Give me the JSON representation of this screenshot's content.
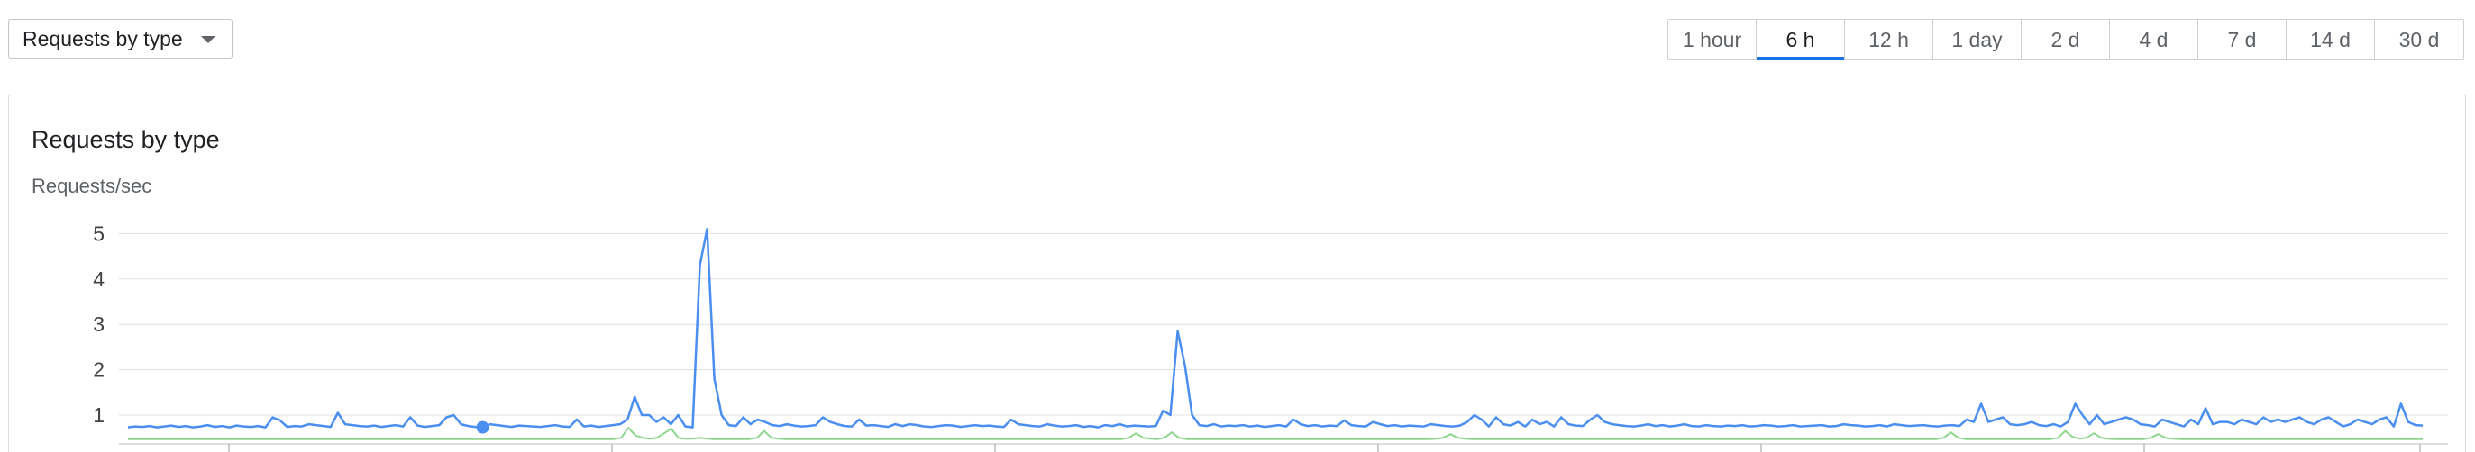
{
  "controls": {
    "type_dropdown_label": "Requests by type",
    "time_ranges": [
      "1 hour",
      "6 h",
      "12 h",
      "1 day",
      "2 d",
      "4 d",
      "7 d",
      "14 d",
      "30 d"
    ],
    "active_range": "6 h"
  },
  "card": {
    "title": "Requests by type",
    "y_axis_label": "Requests/sec"
  },
  "colors": {
    "series_blue": "#4a8ef0",
    "series_green": "#8fd68f",
    "active_tab": "#1a73e8"
  },
  "chart_data": {
    "type": "line",
    "title": "Requests by type",
    "ylabel": "Requests/sec",
    "y_ticks": [
      1,
      2,
      3,
      4,
      5
    ],
    "ylim": [
      0.45,
      5.5
    ],
    "grid": true,
    "series": [
      {
        "color": "#4a8ef0",
        "values": [
          0.73,
          0.75,
          0.74,
          0.76,
          0.73,
          0.75,
          0.77,
          0.74,
          0.76,
          0.73,
          0.75,
          0.78,
          0.74,
          0.76,
          0.73,
          0.77,
          0.75,
          0.74,
          0.76,
          0.73,
          0.95,
          0.88,
          0.74,
          0.76,
          0.75,
          0.8,
          0.78,
          0.76,
          0.74,
          1.05,
          0.8,
          0.78,
          0.76,
          0.75,
          0.77,
          0.74,
          0.76,
          0.78,
          0.75,
          0.95,
          0.77,
          0.74,
          0.76,
          0.78,
          0.95,
          1.0,
          0.8,
          0.76,
          0.74,
          0.73,
          0.8,
          0.78,
          0.76,
          0.74,
          0.77,
          0.76,
          0.75,
          0.74,
          0.76,
          0.78,
          0.75,
          0.74,
          0.9,
          0.75,
          0.77,
          0.74,
          0.76,
          0.78,
          0.8,
          0.9,
          1.4,
          1.0,
          1.0,
          0.85,
          0.95,
          0.8,
          1.0,
          0.75,
          0.73,
          4.3,
          5.1,
          1.8,
          1.0,
          0.78,
          0.76,
          0.95,
          0.8,
          0.9,
          0.85,
          0.78,
          0.76,
          0.8,
          0.77,
          0.75,
          0.76,
          0.78,
          0.95,
          0.85,
          0.8,
          0.76,
          0.75,
          0.9,
          0.77,
          0.78,
          0.76,
          0.74,
          0.8,
          0.76,
          0.8,
          0.78,
          0.75,
          0.74,
          0.76,
          0.78,
          0.77,
          0.74,
          0.76,
          0.78,
          0.76,
          0.77,
          0.75,
          0.74,
          0.9,
          0.8,
          0.78,
          0.76,
          0.75,
          0.8,
          0.77,
          0.75,
          0.76,
          0.78,
          0.74,
          0.76,
          0.73,
          0.78,
          0.76,
          0.8,
          0.75,
          0.77,
          0.76,
          0.75,
          0.76,
          1.1,
          1.0,
          2.85,
          2.1,
          1.0,
          0.78,
          0.76,
          0.8,
          0.75,
          0.77,
          0.76,
          0.78,
          0.75,
          0.77,
          0.74,
          0.76,
          0.78,
          0.75,
          0.9,
          0.8,
          0.76,
          0.78,
          0.75,
          0.77,
          0.76,
          0.88,
          0.78,
          0.76,
          0.75,
          0.85,
          0.8,
          0.76,
          0.78,
          0.75,
          0.77,
          0.76,
          0.75,
          0.8,
          0.78,
          0.76,
          0.75,
          0.77,
          0.85,
          1.0,
          0.9,
          0.75,
          0.95,
          0.8,
          0.77,
          0.85,
          0.75,
          0.9,
          0.8,
          0.85,
          0.75,
          0.95,
          0.8,
          0.77,
          0.76,
          0.9,
          1.0,
          0.85,
          0.8,
          0.78,
          0.76,
          0.75,
          0.77,
          0.8,
          0.76,
          0.78,
          0.75,
          0.77,
          0.8,
          0.76,
          0.75,
          0.78,
          0.76,
          0.75,
          0.77,
          0.76,
          0.78,
          0.75,
          0.76,
          0.78,
          0.77,
          0.75,
          0.76,
          0.78,
          0.75,
          0.76,
          0.77,
          0.78,
          0.75,
          0.76,
          0.8,
          0.78,
          0.77,
          0.75,
          0.76,
          0.78,
          0.75,
          0.8,
          0.78,
          0.76,
          0.77,
          0.78,
          0.76,
          0.75,
          0.77,
          0.78,
          0.76,
          0.9,
          0.85,
          1.25,
          0.85,
          0.9,
          0.95,
          0.8,
          0.78,
          0.8,
          0.85,
          0.78,
          0.76,
          0.8,
          0.75,
          0.85,
          1.25,
          1.0,
          0.8,
          1.0,
          0.8,
          0.85,
          0.9,
          0.95,
          0.9,
          0.8,
          0.78,
          0.75,
          0.9,
          0.85,
          0.8,
          0.75,
          0.9,
          0.8,
          1.15,
          0.8,
          0.85,
          0.85,
          0.8,
          0.9,
          0.85,
          0.8,
          0.95,
          0.85,
          0.9,
          0.85,
          0.9,
          0.95,
          0.85,
          0.8,
          0.9,
          0.95,
          0.85,
          0.75,
          0.8,
          0.9,
          0.85,
          0.8,
          0.9,
          0.95,
          0.75,
          1.25,
          0.85,
          0.78,
          0.77
        ]
      },
      {
        "color": "#8fd68f",
        "values": [
          0.47,
          0.47,
          0.47,
          0.47,
          0.47,
          0.47,
          0.47,
          0.47,
          0.47,
          0.47,
          0.47,
          0.47,
          0.47,
          0.47,
          0.47,
          0.47,
          0.47,
          0.47,
          0.47,
          0.47,
          0.47,
          0.47,
          0.47,
          0.47,
          0.47,
          0.47,
          0.47,
          0.47,
          0.47,
          0.47,
          0.47,
          0.47,
          0.47,
          0.47,
          0.47,
          0.47,
          0.47,
          0.47,
          0.47,
          0.47,
          0.47,
          0.47,
          0.47,
          0.47,
          0.47,
          0.47,
          0.47,
          0.47,
          0.47,
          0.47,
          0.47,
          0.47,
          0.47,
          0.47,
          0.47,
          0.47,
          0.47,
          0.47,
          0.47,
          0.47,
          0.47,
          0.47,
          0.47,
          0.47,
          0.47,
          0.47,
          0.47,
          0.47,
          0.47,
          0.5,
          0.72,
          0.55,
          0.5,
          0.48,
          0.5,
          0.6,
          0.7,
          0.5,
          0.48,
          0.48,
          0.5,
          0.48,
          0.47,
          0.47,
          0.47,
          0.47,
          0.47,
          0.47,
          0.5,
          0.65,
          0.5,
          0.48,
          0.47,
          0.47,
          0.47,
          0.47,
          0.47,
          0.47,
          0.47,
          0.47,
          0.47,
          0.47,
          0.47,
          0.47,
          0.47,
          0.47,
          0.47,
          0.47,
          0.47,
          0.47,
          0.47,
          0.47,
          0.47,
          0.47,
          0.47,
          0.47,
          0.47,
          0.47,
          0.47,
          0.47,
          0.47,
          0.47,
          0.47,
          0.47,
          0.47,
          0.47,
          0.47,
          0.47,
          0.47,
          0.47,
          0.47,
          0.47,
          0.47,
          0.47,
          0.47,
          0.47,
          0.47,
          0.47,
          0.47,
          0.47,
          0.5,
          0.6,
          0.5,
          0.48,
          0.47,
          0.5,
          0.62,
          0.5,
          0.47,
          0.47,
          0.47,
          0.47,
          0.47,
          0.47,
          0.47,
          0.47,
          0.47,
          0.47,
          0.47,
          0.47,
          0.47,
          0.47,
          0.47,
          0.47,
          0.47,
          0.47,
          0.47,
          0.47,
          0.47,
          0.47,
          0.47,
          0.47,
          0.47,
          0.47,
          0.47,
          0.47,
          0.47,
          0.47,
          0.47,
          0.47,
          0.47,
          0.47,
          0.47,
          0.48,
          0.5,
          0.58,
          0.5,
          0.48,
          0.47,
          0.47,
          0.47,
          0.47,
          0.47,
          0.47,
          0.47,
          0.47,
          0.47,
          0.47,
          0.47,
          0.47,
          0.47,
          0.47,
          0.47,
          0.47,
          0.47,
          0.47,
          0.47,
          0.47,
          0.47,
          0.47,
          0.47,
          0.47,
          0.47,
          0.47,
          0.47,
          0.47,
          0.47,
          0.47,
          0.47,
          0.47,
          0.47,
          0.47,
          0.47,
          0.47,
          0.47,
          0.47,
          0.47,
          0.47,
          0.47,
          0.47,
          0.47,
          0.47,
          0.47,
          0.47,
          0.47,
          0.47,
          0.47,
          0.47,
          0.47,
          0.47,
          0.47,
          0.47,
          0.47,
          0.47,
          0.47,
          0.47,
          0.47,
          0.47,
          0.47,
          0.47,
          0.47,
          0.47,
          0.47,
          0.47,
          0.5,
          0.62,
          0.5,
          0.47,
          0.47,
          0.47,
          0.47,
          0.47,
          0.47,
          0.47,
          0.47,
          0.47,
          0.47,
          0.47,
          0.47,
          0.47,
          0.5,
          0.65,
          0.52,
          0.48,
          0.5,
          0.6,
          0.5,
          0.48,
          0.47,
          0.47,
          0.47,
          0.47,
          0.47,
          0.5,
          0.58,
          0.5,
          0.48,
          0.47,
          0.47,
          0.47,
          0.47,
          0.47,
          0.47,
          0.47,
          0.47,
          0.47,
          0.47,
          0.47,
          0.47,
          0.47,
          0.47,
          0.47,
          0.47,
          0.47,
          0.47,
          0.47,
          0.47,
          0.47,
          0.47,
          0.47,
          0.47,
          0.47,
          0.47,
          0.47,
          0.47,
          0.47,
          0.47,
          0.47,
          0.47,
          0.47,
          0.47,
          0.47
        ]
      }
    ]
  }
}
